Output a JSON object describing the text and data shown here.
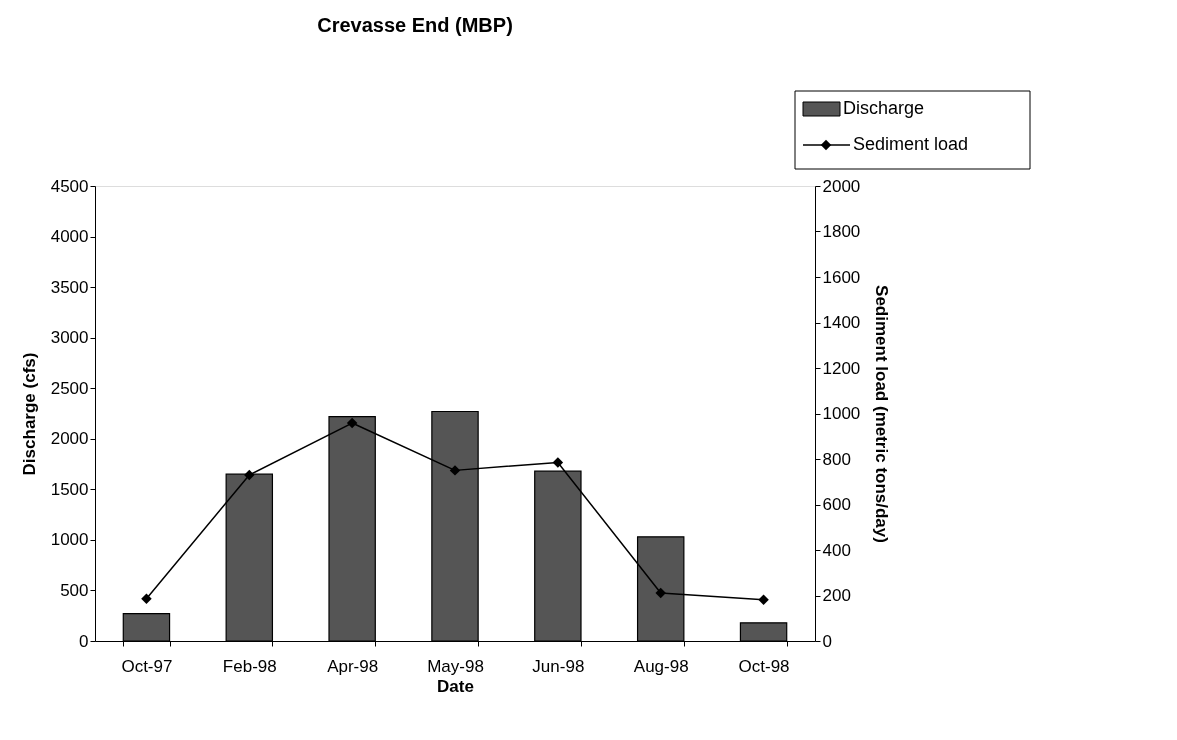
{
  "chart_data": {
    "type": "bar",
    "title": "Crevasse End (MBP)",
    "xlabel": "Date",
    "ylabel": "Discharge (cfs)",
    "y2label": "Sediment load (metric tons/day)",
    "categories": [
      "Oct-97",
      "Feb-98",
      "Apr-98",
      "May-98",
      "Jun-98",
      "Aug-98",
      "Oct-98"
    ],
    "series": [
      {
        "name": "Discharge",
        "color": "#555555",
        "values": [
          270,
          1650,
          2220,
          2270,
          1680,
          1030,
          180
        ]
      },
      {
        "name": "Sediment load",
        "type": "line",
        "axis": "y2",
        "color": "#000000",
        "marker": "diamond",
        "values": [
          186,
          730,
          958,
          750,
          785,
          211,
          181
        ]
      }
    ],
    "ylim": [
      0,
      4500
    ],
    "yticks": [
      0,
      500,
      1000,
      1500,
      2000,
      2500,
      3000,
      3500,
      4000,
      4500
    ],
    "y2lim": [
      0,
      2000
    ],
    "y2ticks": [
      0,
      200,
      400,
      600,
      800,
      1000,
      1200,
      1400,
      1600,
      1800,
      2000
    ],
    "grid": false,
    "legend": "top right"
  }
}
